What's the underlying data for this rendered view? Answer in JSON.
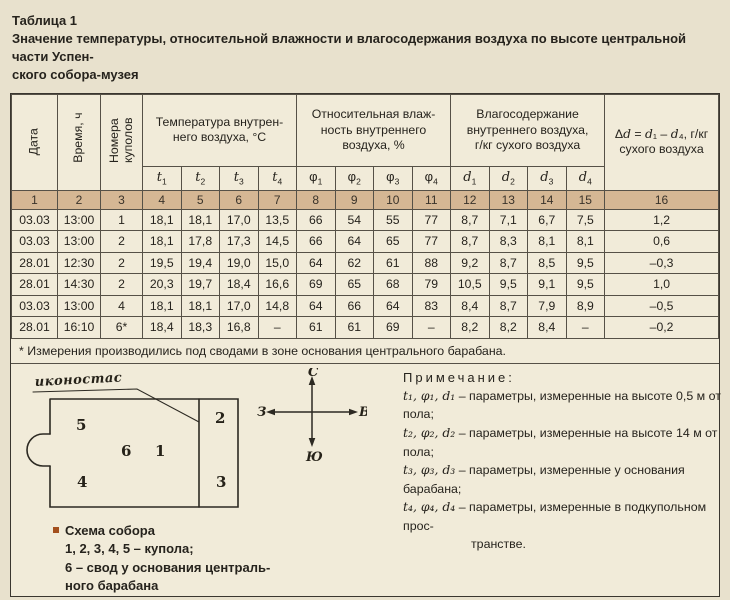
{
  "header": {
    "table_label": "Таблица 1",
    "title_line1": "Значение температуры, относительной влажности и влагосодержания воздуха по высоте центральной части Успен-",
    "title_line2": "ского собора-музея"
  },
  "colors": {
    "page_bg": "#e8e1cd",
    "sheet_bg": "#f1ebd9",
    "band_bg": "#d5b794",
    "border": "#565147",
    "bullet": "#a34f1d",
    "text": "#26231d"
  },
  "table": {
    "rotated_headers": [
      "Дата",
      "Время, ч",
      "Номера\nкуполов"
    ],
    "group_headers": [
      "Температура внутрен-\nнего воздуха, °С",
      "Относительная влаж-\nность внутреннего\nвоздуха, %",
      "Влагосодержание\nвнутреннего воздуха,\nг/кг сухого воздуха"
    ],
    "delta_header": "Δd = d₁ – d₄, г/кг\nсухого воздуха",
    "sub_headers": [
      {
        "base": "t",
        "sub": "1",
        "italic": true
      },
      {
        "base": "t",
        "sub": "2",
        "italic": true
      },
      {
        "base": "t",
        "sub": "3",
        "italic": true
      },
      {
        "base": "t",
        "sub": "4",
        "italic": true
      },
      {
        "base": "φ",
        "sub": "1",
        "italic": false
      },
      {
        "base": "φ",
        "sub": "2",
        "italic": false
      },
      {
        "base": "φ",
        "sub": "3",
        "italic": false
      },
      {
        "base": "φ",
        "sub": "4",
        "italic": false
      },
      {
        "base": "d",
        "sub": "1",
        "italic": true
      },
      {
        "base": "d",
        "sub": "2",
        "italic": true
      },
      {
        "base": "d",
        "sub": "3",
        "italic": true
      },
      {
        "base": "d",
        "sub": "4",
        "italic": true
      }
    ],
    "col_numbers": [
      "1",
      "2",
      "3",
      "4",
      "5",
      "6",
      "7",
      "8",
      "9",
      "10",
      "11",
      "12",
      "13",
      "14",
      "15",
      "16"
    ],
    "rows": [
      [
        "03.03",
        "13:00",
        "1",
        "18,1",
        "18,1",
        "17,0",
        "13,5",
        "66",
        "54",
        "55",
        "77",
        "8,7",
        "7,1",
        "6,7",
        "7,5",
        "1,2"
      ],
      [
        "03.03",
        "13:00",
        "2",
        "18,1",
        "17,8",
        "17,3",
        "14,5",
        "66",
        "64",
        "65",
        "77",
        "8,7",
        "8,3",
        "8,1",
        "8,1",
        "0,6"
      ],
      [
        "28.01",
        "12:30",
        "2",
        "19,5",
        "19,4",
        "19,0",
        "15,0",
        "64",
        "62",
        "61",
        "88",
        "9,2",
        "8,7",
        "8,5",
        "9,5",
        "–0,3"
      ],
      [
        "28.01",
        "14:30",
        "2",
        "20,3",
        "19,7",
        "18,4",
        "16,6",
        "69",
        "65",
        "68",
        "79",
        "10,5",
        "9,5",
        "9,1",
        "9,5",
        "1,0"
      ],
      [
        "03.03",
        "13:00",
        "4",
        "18,1",
        "18,1",
        "17,0",
        "14,8",
        "64",
        "66",
        "64",
        "83",
        "8,4",
        "8,7",
        "7,9",
        "8,9",
        "–0,5"
      ],
      [
        "28.01",
        "16:10",
        "6*",
        "18,4",
        "18,3",
        "16,8",
        "–",
        "61",
        "61",
        "69",
        "–",
        "8,2",
        "8,2",
        "8,4",
        "–",
        "–0,2"
      ]
    ]
  },
  "footnote": "* Измерения производились под сводами в зоне основания центрального барабана.",
  "diagram": {
    "label": "иконостас",
    "room_numbers": {
      "r1": "1",
      "r2": "2",
      "r3": "3",
      "r4": "4",
      "r5": "5",
      "r6": "6"
    },
    "caption": [
      "Схема собора",
      "1, 2, 3, 4, 5 – купола;",
      "6 – свод у основания централь-",
      "ного барабана"
    ]
  },
  "compass": {
    "north": "С",
    "south": "Ю",
    "west": "З",
    "east": "В"
  },
  "notes": {
    "heading": "Примечание:",
    "items": [
      {
        "sym": "t₁, φ₁, d₁",
        "text": "– параметры, измеренные на высоте 0,5 м от пола;"
      },
      {
        "sym": "t₂, φ₂, d₂",
        "text": "– параметры, измеренные на высоте 14 м от пола;"
      },
      {
        "sym": "t₃, φ₃, d₃",
        "text": "– параметры, измеренные у основания барабана;"
      },
      {
        "sym": "t₄, φ₄, d₄",
        "text": "– параметры, измеренные в подкупольном прос-",
        "text2": "транстве."
      }
    ]
  }
}
